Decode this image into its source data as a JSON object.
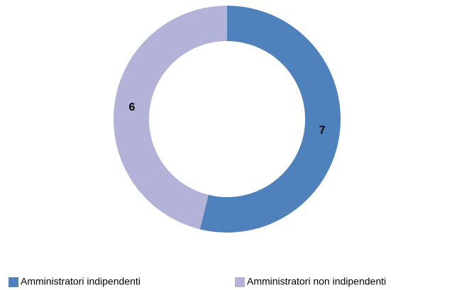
{
  "chart_data": {
    "type": "donut",
    "categories": [
      "Amministratori indipendenti",
      "Amministratori non indipendenti"
    ],
    "values": [
      7,
      6
    ],
    "colors": [
      "#4f81bd",
      "#b3b2d9"
    ],
    "legend": "bottom"
  }
}
